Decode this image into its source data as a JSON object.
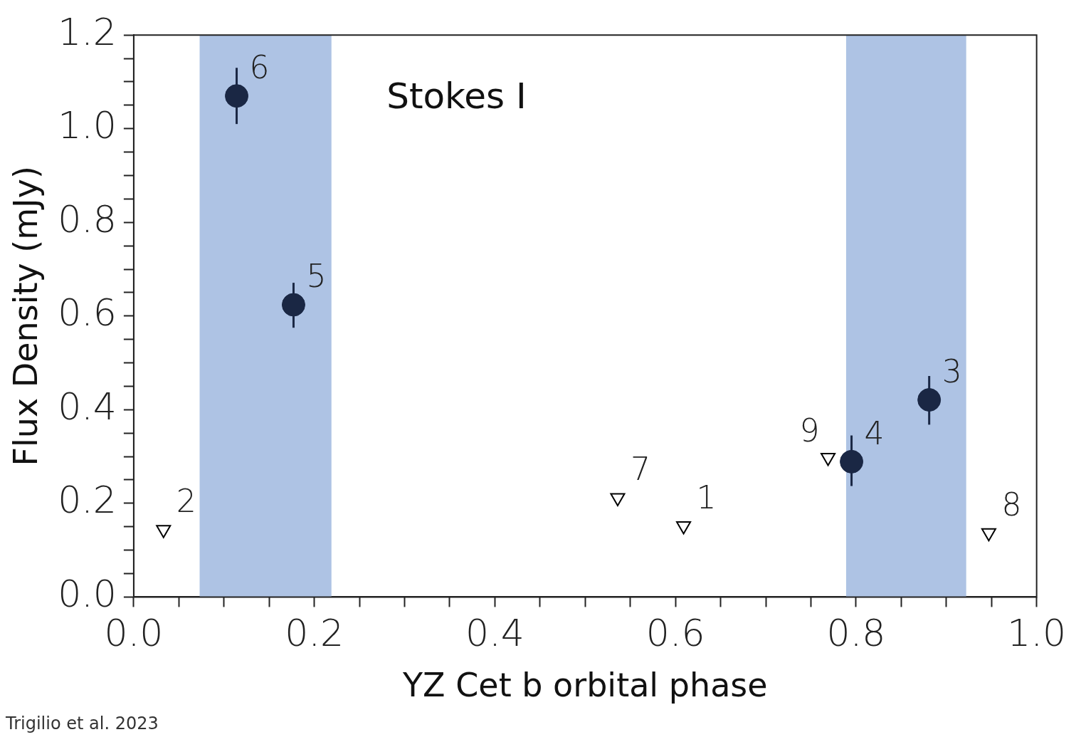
{
  "chart_data": {
    "type": "scatter",
    "xlabel": "YZ Cet b orbital phase",
    "ylabel": "Flux Density (mJy)",
    "annotations": [
      "Stokes I",
      "Trigilio et al. 2023",
      {
        "text": "6",
        "x": 0.114,
        "y": 1.07
      },
      {
        "text": "5",
        "x": 0.177,
        "y": 0.624
      },
      {
        "text": "4",
        "x": 0.795,
        "y": 0.289
      },
      {
        "text": "3",
        "x": 0.881,
        "y": 0.421
      },
      {
        "text": "2",
        "x": 0.033,
        "y": 0.144
      },
      {
        "text": "7",
        "x": 0.536,
        "y": 0.212
      },
      {
        "text": "1",
        "x": 0.609,
        "y": 0.152
      },
      {
        "text": "9",
        "x": 0.769,
        "y": 0.298
      },
      {
        "text": "8",
        "x": 0.947,
        "y": 0.137
      }
    ],
    "xlim": [
      0,
      1.0
    ],
    "xticks": [
      {
        "value": 0,
        "label": "0.0"
      },
      {
        "value": 0.05,
        "label": null
      },
      {
        "value": 0.1,
        "label": null
      },
      {
        "value": 0.15,
        "label": null
      },
      {
        "value": 0.2,
        "label": "0.2"
      },
      {
        "value": 0.25,
        "label": null
      },
      {
        "value": 0.3,
        "label": null
      },
      {
        "value": 0.35,
        "label": null
      },
      {
        "value": 0.4,
        "label": "0.4"
      },
      {
        "value": 0.45,
        "label": null
      },
      {
        "value": 0.5,
        "label": null
      },
      {
        "value": 0.55,
        "label": null
      },
      {
        "value": 0.6,
        "label": "0.6"
      },
      {
        "value": 0.65,
        "label": null
      },
      {
        "value": 0.7,
        "label": null
      },
      {
        "value": 0.75,
        "label": null
      },
      {
        "value": 0.8,
        "label": "0.8"
      },
      {
        "value": 0.85,
        "label": null
      },
      {
        "value": 0.9,
        "label": null
      },
      {
        "value": 0.95,
        "label": null
      },
      {
        "value": 1.0,
        "label": "1.0"
      }
    ],
    "ylim": [
      0,
      1.2
    ],
    "yticks": [
      {
        "value": 0,
        "label": "0.0"
      },
      {
        "value": 0.05,
        "label": null
      },
      {
        "value": 0.1,
        "label": null
      },
      {
        "value": 0.15,
        "label": null
      },
      {
        "value": 0.2,
        "label": "0.2"
      },
      {
        "value": 0.25,
        "label": null
      },
      {
        "value": 0.3,
        "label": null
      },
      {
        "value": 0.35,
        "label": null
      },
      {
        "value": 0.4,
        "label": "0.4"
      },
      {
        "value": 0.45,
        "label": null
      },
      {
        "value": 0.5,
        "label": null
      },
      {
        "value": 0.55,
        "label": null
      },
      {
        "value": 0.6,
        "label": "0.6"
      },
      {
        "value": 0.65,
        "label": null
      },
      {
        "value": 0.7,
        "label": null
      },
      {
        "value": 0.75,
        "label": null
      },
      {
        "value": 0.8,
        "label": "0.8"
      },
      {
        "value": 0.85,
        "label": null
      },
      {
        "value": 0.9,
        "label": null
      },
      {
        "value": 0.95,
        "label": null
      },
      {
        "value": 1.0,
        "label": "1.0"
      },
      {
        "value": 1.05,
        "label": null
      },
      {
        "value": 1.1,
        "label": null
      },
      {
        "value": 1.15,
        "label": null
      },
      {
        "value": 1.2,
        "label": "1.2"
      }
    ],
    "grid": false,
    "legend": false,
    "bands": [
      {
        "axis": "x",
        "from": 0.073,
        "to": 0.219,
        "color": "#aec3e4"
      },
      {
        "axis": "x",
        "from": 0.789,
        "to": 0.922,
        "color": "#aec3e4"
      }
    ],
    "series": [
      {
        "type": "scatter",
        "marker": "circle",
        "color": "#1a2744",
        "x": [
          0.114,
          0.177,
          0.795,
          0.881
        ],
        "values": [
          1.07,
          0.624,
          0.289,
          0.421
        ],
        "errors": [
          [
            1.01,
            1.13
          ],
          [
            0.575,
            0.671
          ],
          [
            0.237,
            0.345
          ],
          [
            0.368,
            0.472
          ]
        ]
      },
      {
        "type": "scatter",
        "marker": "triangle",
        "color": "#000000",
        "x": [
          0.033,
          0.536,
          0.609,
          0.769,
          0.947
        ],
        "values": [
          0.144,
          0.212,
          0.152,
          0.298,
          0.137
        ]
      }
    ]
  }
}
